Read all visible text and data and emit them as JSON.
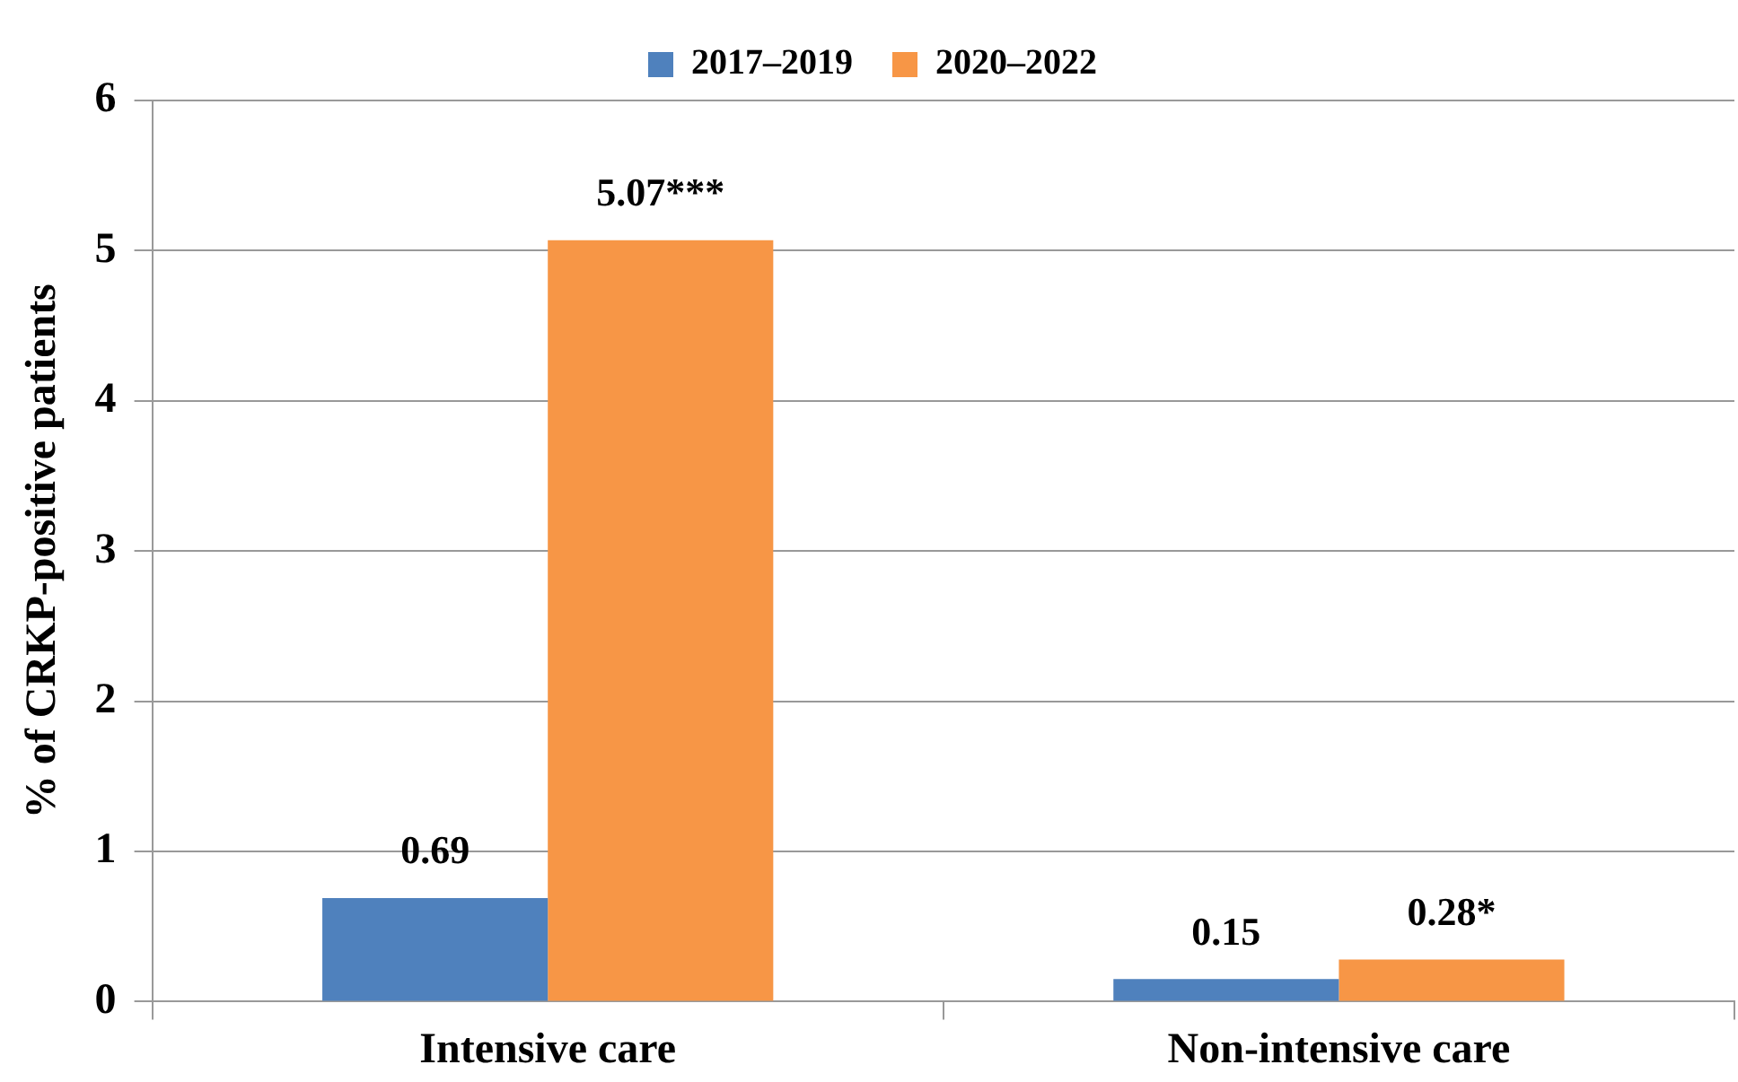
{
  "chart_data": {
    "type": "bar",
    "ylabel": "% of CRKP-positive patients",
    "categories": [
      "Intensive care",
      "Non-intensive care"
    ],
    "series": [
      {
        "name": "2017–2019",
        "color": "#4f81bd",
        "values": [
          0.69,
          0.15
        ],
        "value_labels": [
          "0.69",
          "0.15"
        ]
      },
      {
        "name": "2020–2022",
        "color": "#f79646",
        "values": [
          5.07,
          0.28
        ],
        "value_labels": [
          "5.07***",
          "0.28*"
        ]
      }
    ],
    "ylim": [
      0,
      6
    ],
    "yticks": [
      0,
      1,
      2,
      3,
      4,
      5,
      6
    ],
    "grid": "y",
    "legend": "top"
  }
}
